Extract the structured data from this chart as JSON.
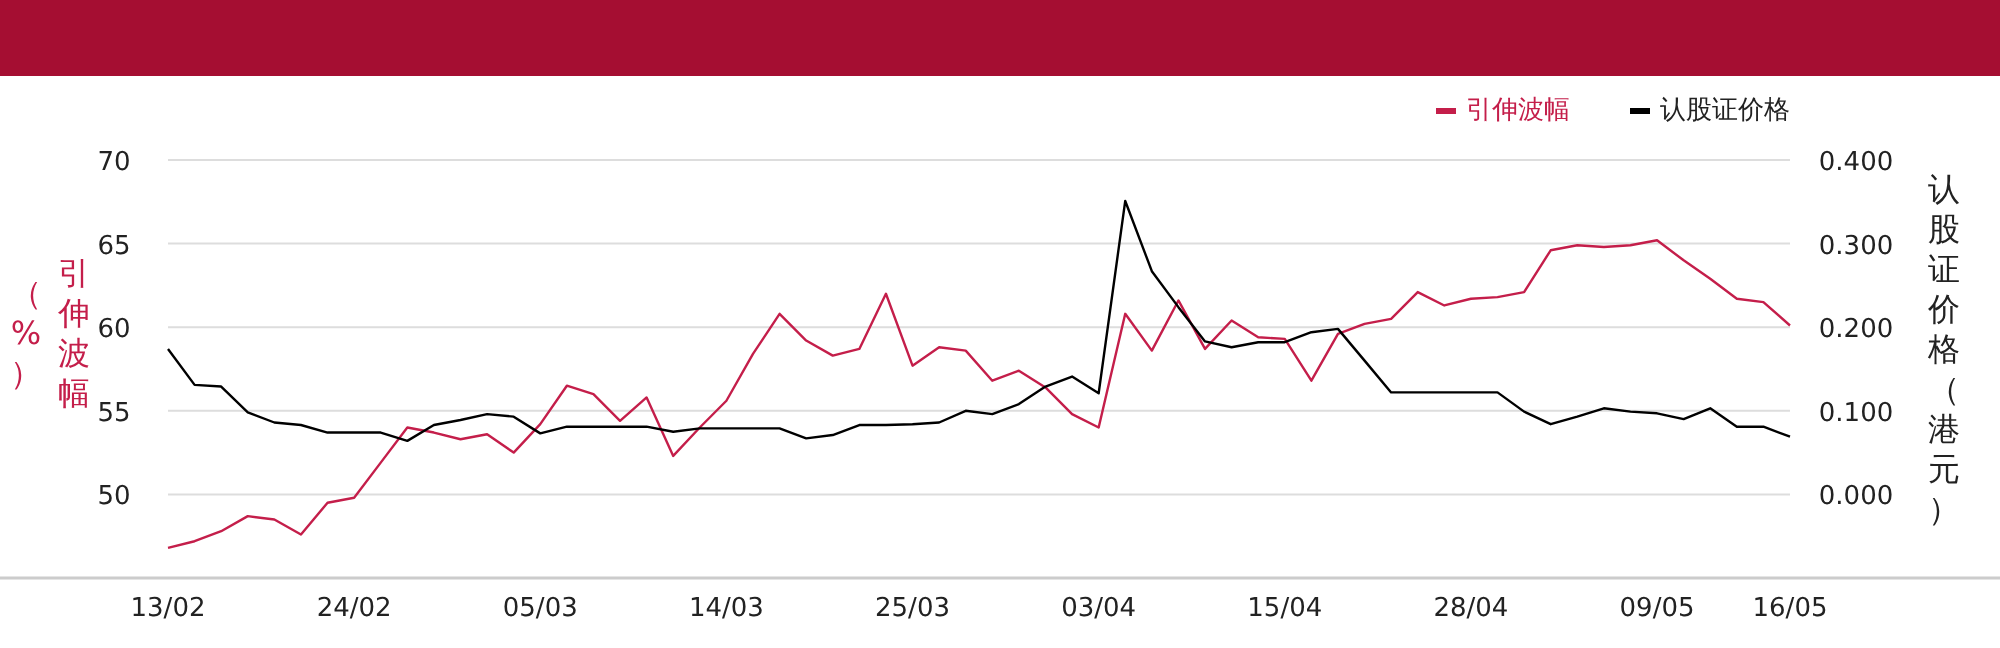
{
  "chart_data": {
    "type": "line",
    "ylabel": "引伸波幅（%）",
    "y2label": "认股证价格（港元）",
    "categories": [
      "13/02",
      null,
      null,
      null,
      null,
      null,
      null,
      "24/02",
      null,
      null,
      null,
      null,
      null,
      null,
      "05/03",
      null,
      null,
      null,
      null,
      null,
      null,
      "14/03",
      null,
      null,
      null,
      null,
      null,
      null,
      "25/03",
      null,
      null,
      null,
      null,
      null,
      null,
      "03/04",
      null,
      null,
      null,
      null,
      null,
      null,
      "15/04",
      null,
      null,
      null,
      null,
      null,
      null,
      "28/04",
      null,
      null,
      null,
      null,
      null,
      null,
      "09/05",
      null,
      null,
      null,
      null,
      "16/05"
    ],
    "ylim": [
      45,
      70
    ],
    "yticks": [
      50,
      55,
      60,
      65,
      70
    ],
    "y2lim": [
      -0.1,
      0.4
    ],
    "y2ticks": [
      {
        "value": 0,
        "label": "0.000"
      },
      {
        "value": 0.1,
        "label": "0.100"
      },
      {
        "value": 0.2,
        "label": "0.200"
      },
      {
        "value": 0.3,
        "label": "0.300"
      },
      {
        "value": 0.4,
        "label": "0.400"
      }
    ],
    "grid": "y",
    "legend": "top right",
    "line_style": "solid",
    "marker": "none",
    "series": [
      {
        "name": "引伸波幅",
        "color": "#c41e4a",
        "values": [
          46.8,
          47.2,
          47.8,
          48.7,
          48.5,
          47.6,
          49.5,
          49.8,
          51.9,
          54.0,
          53.7,
          53.3,
          53.6,
          52.5,
          54.2,
          56.5,
          56.0,
          54.4,
          55.8,
          52.3,
          54.0,
          55.6,
          58.4,
          60.8,
          59.2,
          58.3,
          58.7,
          62.0,
          57.7,
          58.8,
          58.6,
          56.8,
          57.4,
          56.4,
          54.8,
          54.0,
          60.8,
          58.6,
          61.6,
          58.7,
          60.4,
          59.4,
          59.3,
          56.8,
          59.6,
          60.2,
          60.5,
          62.1,
          61.3,
          61.7,
          61.8,
          62.1,
          64.6,
          64.9,
          64.8,
          64.9,
          65.2,
          64.0,
          62.9,
          61.7,
          61.5,
          60.1
        ]
      },
      {
        "name": "认股证价格",
        "color": "#000000",
        "axis": "y2",
        "values": [
          0.174,
          0.131,
          0.129,
          0.098,
          0.086,
          0.083,
          0.074,
          0.074,
          0.074,
          0.064,
          0.083,
          0.089,
          0.096,
          0.093,
          0.073,
          0.081,
          0.081,
          0.081,
          0.081,
          0.075,
          0.079,
          0.079,
          0.079,
          0.079,
          0.067,
          0.071,
          0.083,
          0.083,
          0.084,
          0.086,
          0.1,
          0.096,
          0.108,
          0.129,
          0.141,
          0.121,
          0.351,
          0.267,
          0.224,
          0.183,
          0.176,
          0.182,
          0.182,
          0.194,
          0.198,
          0.16,
          0.122,
          0.122,
          0.122,
          0.122,
          0.122,
          0.099,
          0.084,
          0.093,
          0.103,
          0.099,
          0.097,
          0.09,
          0.103,
          0.081,
          0.081,
          0.069
        ]
      }
    ]
  }
}
